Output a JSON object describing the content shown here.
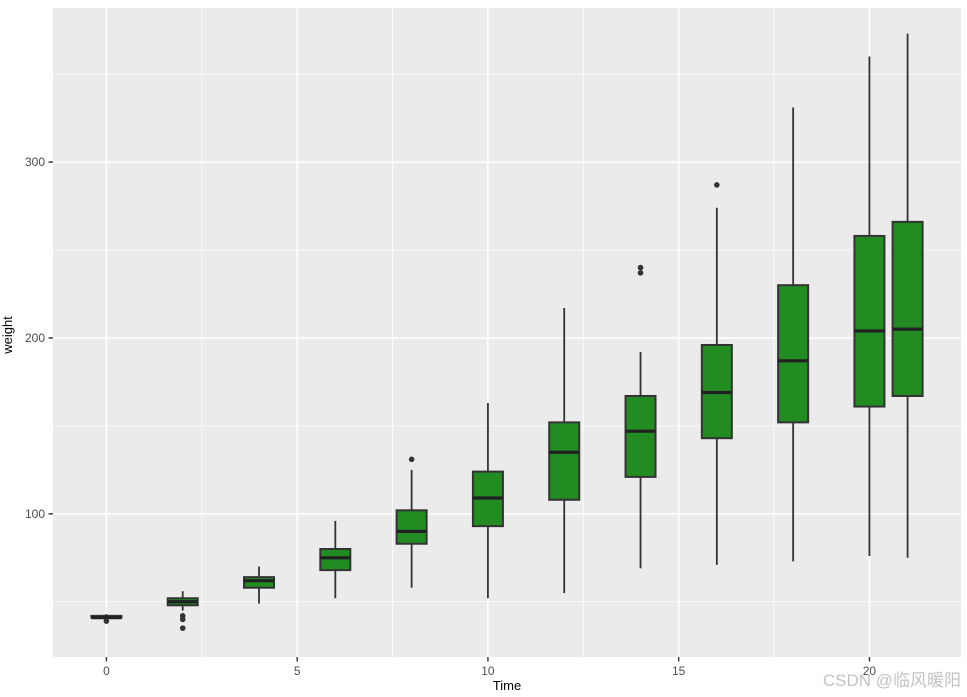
{
  "watermark": {
    "text": "CSDN @临风暖阳"
  },
  "chart_data": {
    "type": "boxplot",
    "title": "",
    "xlabel": "Time",
    "ylabel": "weight",
    "x_ticks": [
      0,
      5,
      10,
      15,
      20
    ],
    "x_minor_ticks": [
      2.5,
      7.5,
      12.5,
      17.5,
      22.5
    ],
    "y_ticks": [
      100,
      200,
      300
    ],
    "y_minor_ticks": [
      50,
      150,
      250,
      350
    ],
    "x_domain": [
      -1.4,
      22.4
    ],
    "y_domain": [
      18.6,
      387.6
    ],
    "grid": "on",
    "legend": "none",
    "series": [
      {
        "time": 0,
        "min": 40,
        "q1": 41,
        "median": 41,
        "q3": 42,
        "max": 43,
        "outliers": [
          39
        ]
      },
      {
        "time": 2,
        "min": 45,
        "q1": 48,
        "median": 50,
        "q3": 52,
        "max": 56,
        "outliers": [
          42,
          40,
          35
        ]
      },
      {
        "time": 4,
        "min": 49,
        "q1": 58,
        "median": 62,
        "q3": 64,
        "max": 70,
        "outliers": []
      },
      {
        "time": 6,
        "min": 52,
        "q1": 68,
        "median": 75,
        "q3": 80,
        "max": 96,
        "outliers": []
      },
      {
        "time": 8,
        "min": 58,
        "q1": 83,
        "median": 90,
        "q3": 102,
        "max": 125,
        "outliers": [
          131
        ]
      },
      {
        "time": 10,
        "min": 52,
        "q1": 93,
        "median": 109,
        "q3": 124,
        "max": 163,
        "outliers": []
      },
      {
        "time": 12,
        "min": 55,
        "q1": 108,
        "median": 135,
        "q3": 152,
        "max": 217,
        "outliers": []
      },
      {
        "time": 14,
        "min": 69,
        "q1": 121,
        "median": 147,
        "q3": 167,
        "max": 192,
        "outliers": [
          237,
          240
        ]
      },
      {
        "time": 16,
        "min": 71,
        "q1": 143,
        "median": 169,
        "q3": 196,
        "max": 274,
        "outliers": [
          287
        ]
      },
      {
        "time": 18,
        "min": 73,
        "q1": 152,
        "median": 187,
        "q3": 230,
        "max": 331,
        "outliers": []
      },
      {
        "time": 20,
        "min": 76,
        "q1": 161,
        "median": 204,
        "q3": 258,
        "max": 360,
        "outliers": []
      },
      {
        "time": 21,
        "min": 75,
        "q1": 167,
        "median": 205,
        "q3": 266,
        "max": 373,
        "outliers": []
      }
    ],
    "colors": {
      "panel": "#ebebeb",
      "grid_major": "#ffffff",
      "grid_minor": "#ffffff",
      "box_fill": "#228b22",
      "box_stroke": "#333333",
      "median_line": "#212121",
      "outlier": "#333333",
      "tick_label": "#4d4d4d",
      "tick_mark": "#333333",
      "axis_title": "#000000"
    }
  }
}
